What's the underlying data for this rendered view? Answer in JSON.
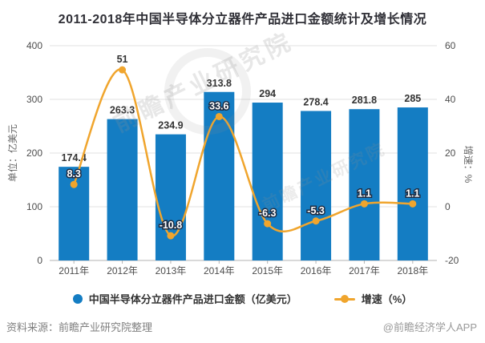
{
  "title": "2011-2018年中国半导体分立器件产品进口金额统计及增长情况",
  "chart_data": {
    "type": "bar+line",
    "categories": [
      "2011年",
      "2012年",
      "2013年",
      "2014年",
      "2015年",
      "2016年",
      "2017年",
      "2018年"
    ],
    "series": [
      {
        "name": "中国半导体分立器件产品进口金额（亿美元）",
        "type": "bar",
        "axis": "left",
        "color": "#147dc3",
        "values": [
          174.4,
          263.3,
          234.9,
          313.8,
          294,
          278.4,
          281.8,
          285
        ]
      },
      {
        "name": "增速（%）",
        "type": "line",
        "axis": "right",
        "color": "#f0a52d",
        "values": [
          8.3,
          51,
          -10.8,
          33.6,
          -6.3,
          -5.3,
          1.1,
          1.1
        ]
      }
    ],
    "left_axis": {
      "label": "单位：亿美元",
      "min": 0,
      "max": 400,
      "ticks": [
        0,
        100,
        200,
        300,
        400
      ]
    },
    "right_axis": {
      "label": "增速：%",
      "min": -20,
      "max": 60,
      "ticks": [
        -20,
        0,
        20,
        40,
        60
      ]
    },
    "grid": true,
    "legend_position": "bottom"
  },
  "legend": [
    {
      "label": "中国半导体分立器件产品进口金额（亿美元）",
      "marker": "circle",
      "color": "#147dc3"
    },
    {
      "label": "增速（%）",
      "marker": "line-dot",
      "color": "#f0a52d"
    }
  ],
  "footer": {
    "source": "资料来源：前瞻产业研究院整理",
    "credit": "@前瞻经济学人APP"
  },
  "watermarks": {
    "primary": "前瞻产业研究院",
    "secondary": "前瞻产业研究院"
  },
  "style": {
    "bar_color": "#147dc3",
    "line_color": "#f0a52d",
    "label_outline": "#1e2c42",
    "bar_label_color": "#333333",
    "grid_color": "#e2e2e2",
    "axis_color": "#b3b3b3",
    "tick_text_color": "#4d4d4d",
    "title_color": "#2f2f36"
  }
}
